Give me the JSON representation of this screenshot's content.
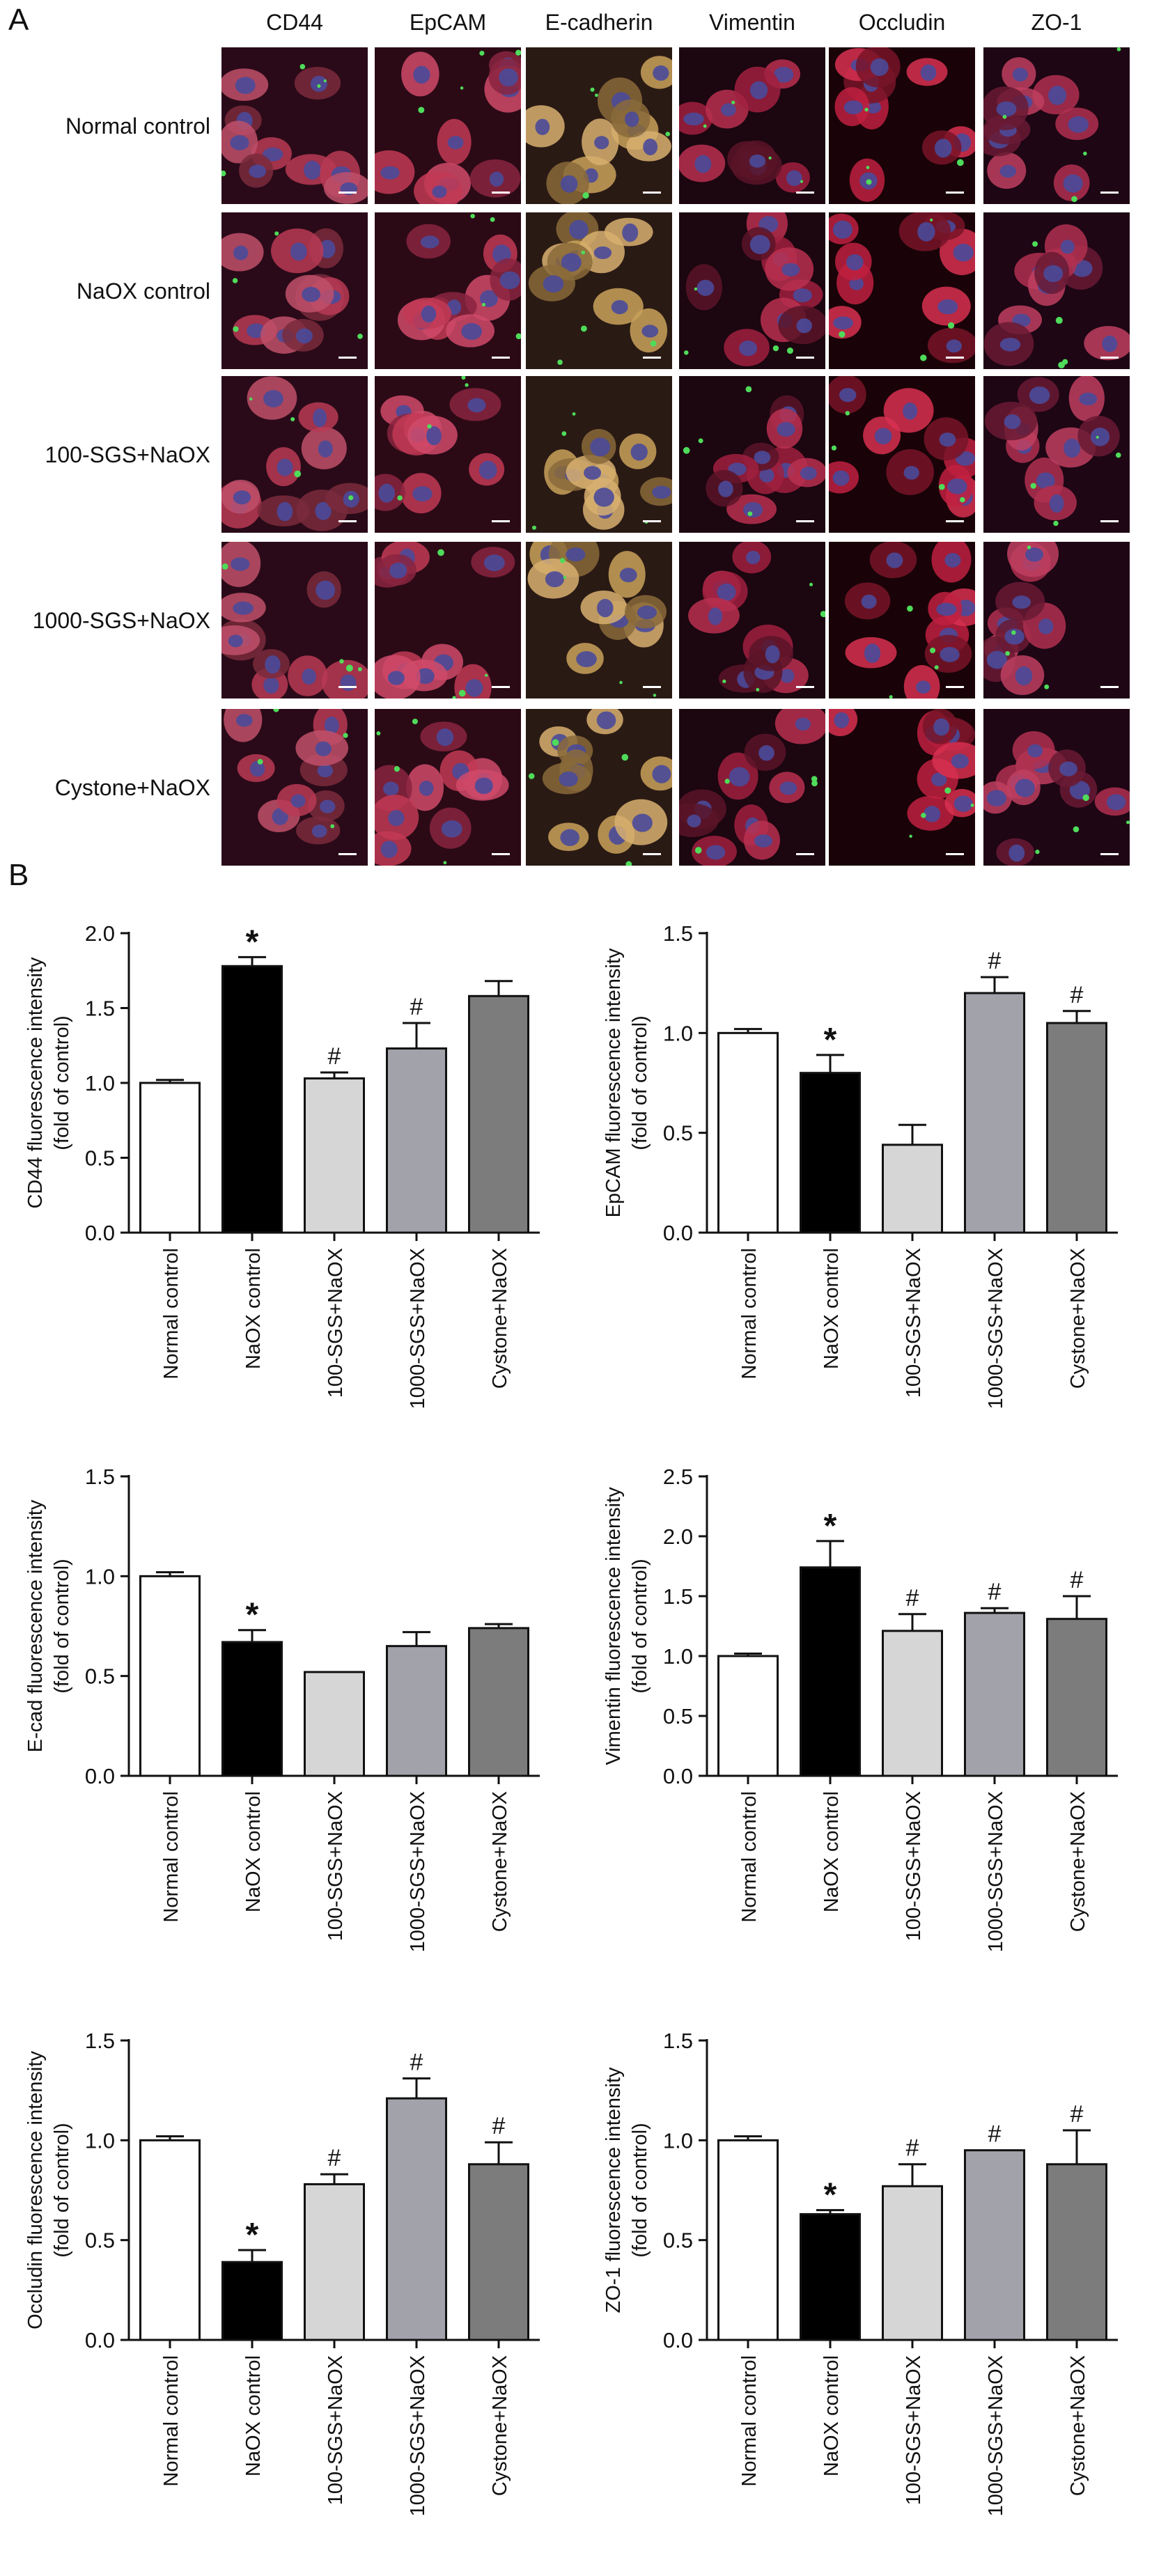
{
  "panel_a": {
    "letter": "A",
    "columns": [
      "CD44",
      "EpCAM",
      "E-cadherin",
      "Vimentin",
      "Occludin",
      "ZO-1"
    ],
    "rows": [
      "Normal control",
      "NaOX control",
      "100-SGS+NaOX",
      "1000-SGS+NaOX",
      "Cystone+NaOX"
    ]
  },
  "panel_b": {
    "letter": "B"
  },
  "colors": {
    "bar_fills": [
      "#ffffff",
      "#000000",
      "#d6d6d6",
      "#a2a2ab",
      "#7c7c7c"
    ],
    "bar_stroke": "#111111"
  },
  "chart_data": [
    {
      "type": "bar",
      "ylabel_lines": [
        "CD44 fluorescence intensity",
        "(fold of control)"
      ],
      "categories": [
        "Normal control",
        "NaOX control",
        "100-SGS+NaOX",
        "1000-SGS+NaOX",
        "Cystone+NaOX"
      ],
      "values": [
        1.0,
        1.78,
        1.03,
        1.23,
        1.58
      ],
      "errors": [
        0.02,
        0.06,
        0.04,
        0.17,
        0.1
      ],
      "markers": [
        "",
        "*",
        "#",
        "#",
        ""
      ],
      "ylim": [
        0,
        2.0
      ],
      "yticks": [
        "0.0",
        "0.5",
        "1.0",
        "1.5",
        "2.0"
      ]
    },
    {
      "type": "bar",
      "ylabel_lines": [
        "EpCAM fluorescence intensity",
        "(fold of control)"
      ],
      "categories": [
        "Normal control",
        "NaOX control",
        "100-SGS+NaOX",
        "1000-SGS+NaOX",
        "Cystone+NaOX"
      ],
      "values": [
        1.0,
        0.8,
        0.44,
        1.2,
        1.05
      ],
      "errors": [
        0.02,
        0.09,
        0.1,
        0.08,
        0.06
      ],
      "markers": [
        "",
        "*",
        "",
        "#",
        "#"
      ],
      "ylim": [
        0,
        1.5
      ],
      "yticks": [
        "0.0",
        "0.5",
        "1.0",
        "1.5"
      ]
    },
    {
      "type": "bar",
      "ylabel_lines": [
        "E-cad fluorescence intensity",
        "(fold of control)"
      ],
      "categories": [
        "Normal control",
        "NaOX control",
        "100-SGS+NaOX",
        "1000-SGS+NaOX",
        "Cystone+NaOX"
      ],
      "values": [
        1.0,
        0.67,
        0.52,
        0.65,
        0.74
      ],
      "errors": [
        0.02,
        0.06,
        0.0,
        0.07,
        0.02
      ],
      "markers": [
        "",
        "*",
        "",
        "",
        ""
      ],
      "ylim": [
        0,
        1.5
      ],
      "yticks": [
        "0.0",
        "0.5",
        "1.0",
        "1.5"
      ]
    },
    {
      "type": "bar",
      "ylabel_lines": [
        "Vimentin fluorescence intensity",
        "(fold of control)"
      ],
      "categories": [
        "Normal control",
        "NaOX control",
        "100-SGS+NaOX",
        "1000-SGS+NaOX",
        "Cystone+NaOX"
      ],
      "values": [
        1.0,
        1.74,
        1.21,
        1.36,
        1.31
      ],
      "errors": [
        0.02,
        0.22,
        0.14,
        0.04,
        0.19
      ],
      "markers": [
        "",
        "*",
        "#",
        "#",
        "#"
      ],
      "ylim": [
        0,
        2.5
      ],
      "yticks": [
        "0.0",
        "0.5",
        "1.0",
        "1.5",
        "2.0",
        "2.5"
      ]
    },
    {
      "type": "bar",
      "ylabel_lines": [
        "Occludin fluorescence intensity",
        "(fold of control)"
      ],
      "categories": [
        "Normal control",
        "NaOX control",
        "100-SGS+NaOX",
        "1000-SGS+NaOX",
        "Cystone+NaOX"
      ],
      "values": [
        1.0,
        0.39,
        0.78,
        1.21,
        0.88
      ],
      "errors": [
        0.02,
        0.06,
        0.05,
        0.1,
        0.11
      ],
      "markers": [
        "",
        "*",
        "#",
        "#",
        "#"
      ],
      "ylim": [
        0,
        1.5
      ],
      "yticks": [
        "0.0",
        "0.5",
        "1.0",
        "1.5"
      ]
    },
    {
      "type": "bar",
      "ylabel_lines": [
        "ZO-1 fluorescence intensity",
        "(fold of control)"
      ],
      "categories": [
        "Normal control",
        "NaOX control",
        "100-SGS+NaOX",
        "1000-SGS+NaOX",
        "Cystone+NaOX"
      ],
      "values": [
        1.0,
        0.63,
        0.77,
        0.95,
        0.88
      ],
      "errors": [
        0.02,
        0.02,
        0.11,
        0.0,
        0.17
      ],
      "markers": [
        "",
        "*",
        "#",
        "#",
        "#"
      ],
      "ylim": [
        0,
        1.5
      ],
      "yticks": [
        "0.0",
        "0.5",
        "1.0",
        "1.5"
      ]
    }
  ]
}
